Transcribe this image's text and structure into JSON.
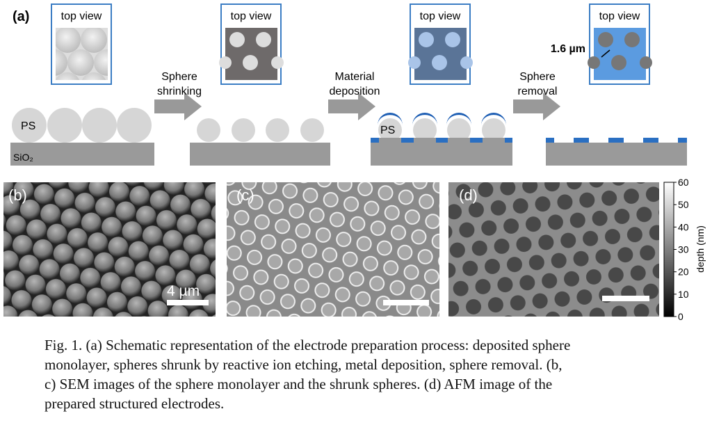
{
  "panel_a": {
    "label": "(a)",
    "top_view": [
      "top view",
      "top view",
      "top view",
      "top view"
    ],
    "steps": [
      [
        "Sphere",
        "shrinking"
      ],
      [
        "Material",
        "deposition"
      ],
      [
        "Sphere",
        "removal"
      ]
    ],
    "ps_labels": [
      "PS",
      "PS"
    ],
    "substrate": "SiO₂",
    "pitch": "1.6 µm"
  },
  "panel_b": {
    "label": "(b)",
    "scale": "4 µm"
  },
  "panel_c": {
    "label": "(c)"
  },
  "panel_d": {
    "label": "(d)",
    "colorbar": {
      "title": "depth (nm)",
      "ticks": [
        0,
        10,
        20,
        30,
        40,
        50,
        60
      ]
    }
  },
  "caption": [
    "Fig. 1.  (a) Schematic representation of the electrode preparation process: deposited sphere",
    "monolayer, spheres shrunk by reactive ion etching, metal deposition, sphere removal. (b,",
    "c) SEM images of the sphere monolayer and the shrunk spheres. (d) AFM image of the",
    "prepared structured electrodes."
  ]
}
